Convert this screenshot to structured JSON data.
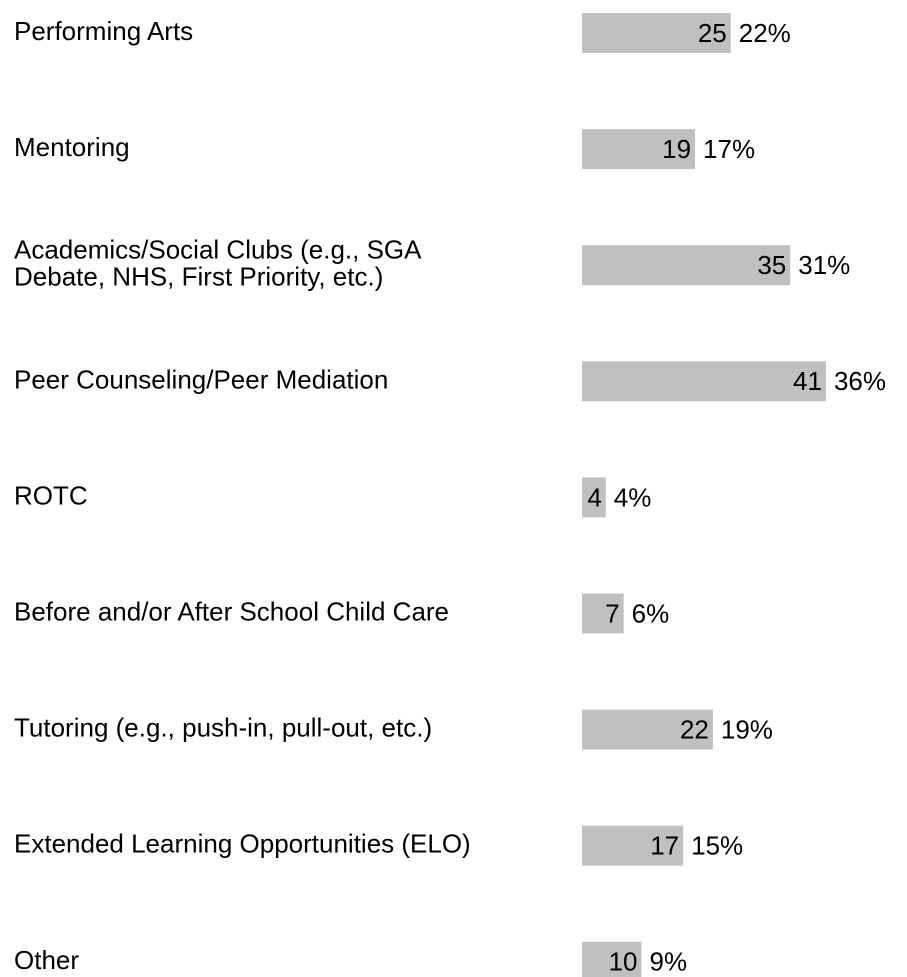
{
  "chart_data": {
    "type": "bar",
    "orientation": "horizontal",
    "categories": [
      "Performing Arts",
      "Mentoring",
      "Academics/Social Clubs (e.g., SGA\nDebate, NHS, First Priority, etc.)",
      "Peer Counseling/Peer Mediation",
      "ROTC",
      "Before and/or After School Child Care",
      "Tutoring (e.g., push-in, pull-out, etc.)",
      "Extended Learning Opportunities (ELO)",
      "Other"
    ],
    "values": [
      25,
      19,
      35,
      41,
      4,
      7,
      22,
      17,
      10
    ],
    "color": "#c0c0c0",
    "percent_values": [
      22,
      17,
      31,
      36,
      4,
      6,
      19,
      15,
      9
    ],
    "percent_labels": [
      "22%",
      "17%",
      "31%",
      "36%",
      "4%",
      "6%",
      "19%",
      "15%",
      "9%"
    ]
  }
}
